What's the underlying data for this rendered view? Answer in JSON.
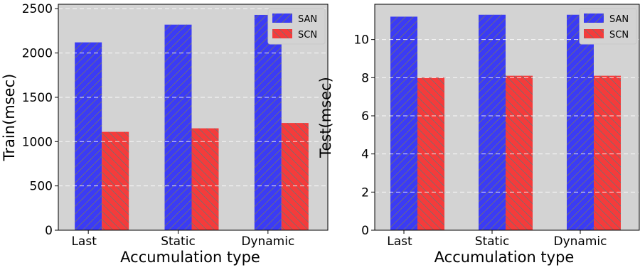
{
  "colors": {
    "plot_background": "#d3d3d3",
    "grid": "#ffffff",
    "hatch": "#707070"
  },
  "chart_data": [
    {
      "type": "bar",
      "categories": [
        "Last",
        "Static",
        "Dynamic"
      ],
      "xlabel": "Accumulation type",
      "ylabel": "Train(msec)",
      "ylim": [
        0,
        2550
      ],
      "yticks": [
        0,
        500,
        1000,
        1500,
        2000,
        2500
      ],
      "grid": true,
      "legend_position": "top-right",
      "series": [
        {
          "name": "SAN",
          "color": "#3b3bf5",
          "hatch": "diagonal-up",
          "values": [
            2120,
            2320,
            2430
          ]
        },
        {
          "name": "SCN",
          "color": "#f53b3b",
          "hatch": "diagonal-down",
          "values": [
            1110,
            1150,
            1210
          ]
        }
      ]
    },
    {
      "type": "bar",
      "categories": [
        "Last",
        "Static",
        "Dynamic"
      ],
      "xlabel": "Accumulation type",
      "ylabel": "Test(msec)",
      "ylim": [
        0,
        11.85
      ],
      "yticks": [
        0,
        2,
        4,
        6,
        8,
        10
      ],
      "grid": true,
      "legend_position": "top-right",
      "series": [
        {
          "name": "SAN",
          "color": "#3b3bf5",
          "hatch": "diagonal-up",
          "values": [
            11.2,
            11.3,
            11.3
          ]
        },
        {
          "name": "SCN",
          "color": "#f53b3b",
          "hatch": "diagonal-down",
          "values": [
            8.0,
            8.1,
            8.1
          ]
        }
      ]
    }
  ]
}
